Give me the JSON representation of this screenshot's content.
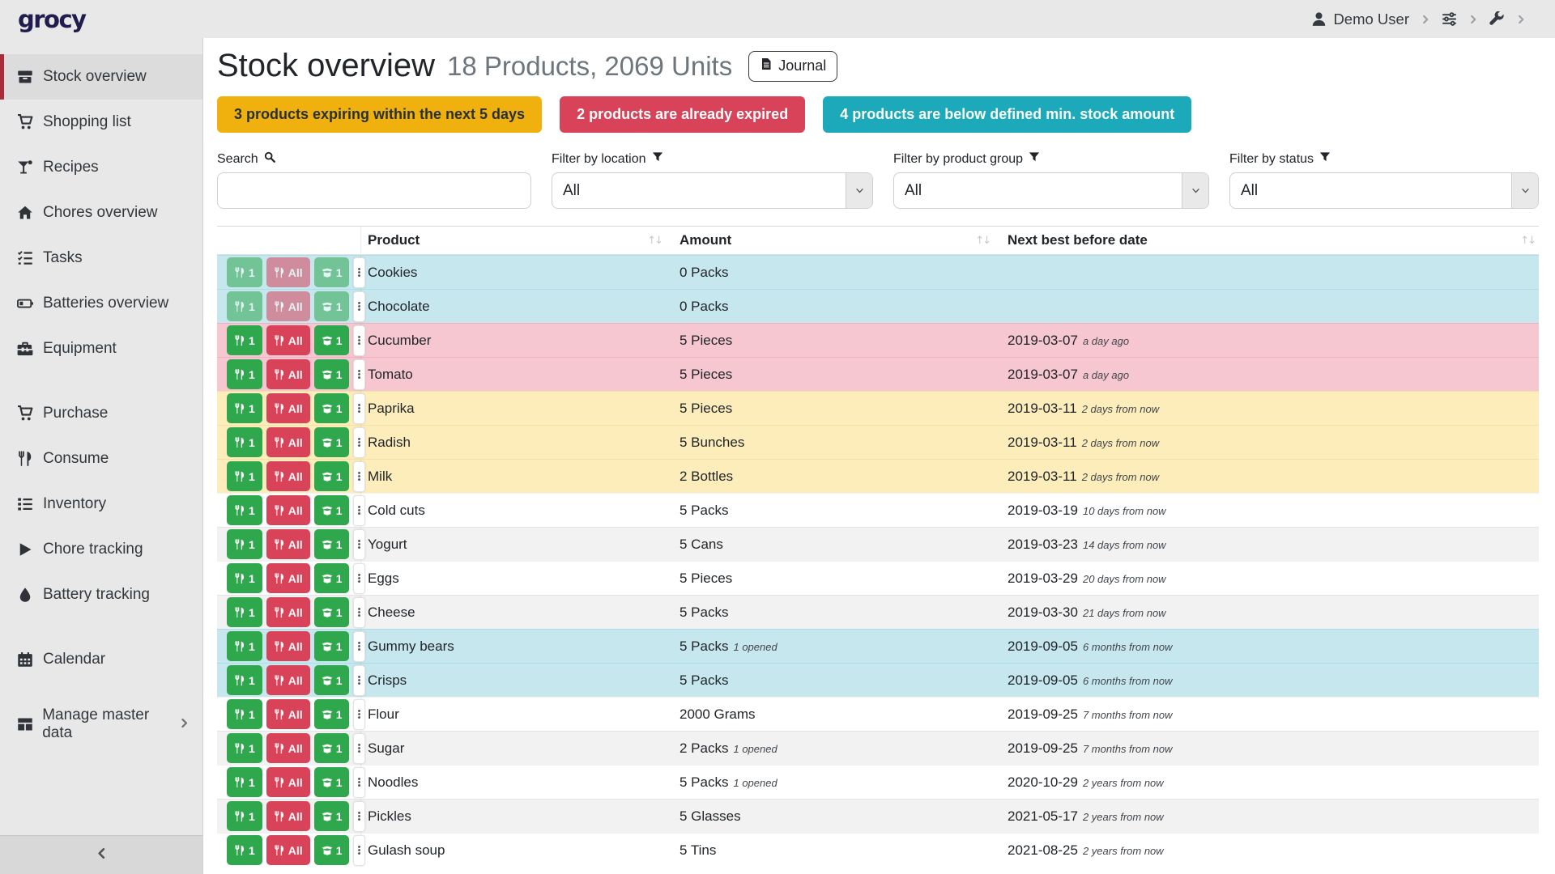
{
  "topbar": {
    "logo": "grocy",
    "user_label": "Demo User"
  },
  "sidebar": {
    "items": [
      {
        "id": "stock-overview",
        "icon": "boxes",
        "label": "Stock overview",
        "active": true
      },
      {
        "id": "shopping-list",
        "icon": "cart",
        "label": "Shopping list"
      },
      {
        "id": "recipes",
        "icon": "cocktail",
        "label": "Recipes"
      },
      {
        "id": "chores-overview",
        "icon": "home",
        "label": "Chores overview"
      },
      {
        "id": "tasks",
        "icon": "tasks",
        "label": "Tasks"
      },
      {
        "id": "batteries-overview",
        "icon": "battery",
        "label": "Batteries overview"
      },
      {
        "id": "equipment",
        "icon": "toolbox",
        "label": "Equipment"
      },
      {
        "id": "purchase",
        "icon": "cart",
        "label": "Purchase",
        "gap": true
      },
      {
        "id": "consume",
        "icon": "utensils",
        "label": "Consume"
      },
      {
        "id": "inventory",
        "icon": "list",
        "label": "Inventory"
      },
      {
        "id": "chore-tracking",
        "icon": "play",
        "label": "Chore tracking"
      },
      {
        "id": "battery-tracking",
        "icon": "droplet",
        "label": "Battery tracking"
      },
      {
        "id": "calendar",
        "icon": "calendar",
        "label": "Calendar",
        "gap": true
      },
      {
        "id": "manage-master-data",
        "icon": "table",
        "label": "Manage master data",
        "gap": true,
        "chevron": true
      }
    ]
  },
  "header": {
    "title": "Stock overview",
    "subtitle": "18 Products, 2069 Units",
    "journal": "Journal"
  },
  "alerts": [
    {
      "text": "3 products expiring within the next 5 days",
      "bg": "#f0b00e",
      "fg": "#273136"
    },
    {
      "text": "2 products are already expired",
      "bg": "#d8435a",
      "fg": "#ffffff"
    },
    {
      "text": "4 products are below defined min. stock amount",
      "bg": "#1ca9ba",
      "fg": "#ffffff"
    }
  ],
  "filters": {
    "search": {
      "label": "Search",
      "value": ""
    },
    "location": {
      "label": "Filter by location",
      "value": "All"
    },
    "group": {
      "label": "Filter by product group",
      "value": "All"
    },
    "status": {
      "label": "Filter by status",
      "value": "All"
    }
  },
  "table": {
    "columns": [
      "Product",
      "Amount",
      "Next best before date"
    ],
    "action_labels": {
      "consume_one": "1",
      "consume_all": "All",
      "open_one": "1"
    },
    "rows": [
      {
        "product": "Cookies",
        "amount": "0 Packs",
        "amount_note": "",
        "date": "",
        "date_note": "",
        "status": "below-min",
        "disabled": true
      },
      {
        "product": "Chocolate",
        "amount": "0 Packs",
        "amount_note": "",
        "date": "",
        "date_note": "",
        "status": "below-min",
        "disabled": true
      },
      {
        "product": "Cucumber",
        "amount": "5 Pieces",
        "amount_note": "",
        "date": "2019-03-07",
        "date_note": "a day ago",
        "status": "expired"
      },
      {
        "product": "Tomato",
        "amount": "5 Pieces",
        "amount_note": "",
        "date": "2019-03-07",
        "date_note": "a day ago",
        "status": "expired"
      },
      {
        "product": "Paprika",
        "amount": "5 Pieces",
        "amount_note": "",
        "date": "2019-03-11",
        "date_note": "2 days from now",
        "status": "expiring"
      },
      {
        "product": "Radish",
        "amount": "5 Bunches",
        "amount_note": "",
        "date": "2019-03-11",
        "date_note": "2 days from now",
        "status": "expiring"
      },
      {
        "product": "Milk",
        "amount": "2 Bottles",
        "amount_note": "",
        "date": "2019-03-11",
        "date_note": "2 days from now",
        "status": "expiring"
      },
      {
        "product": "Cold cuts",
        "amount": "5 Packs",
        "amount_note": "",
        "date": "2019-03-19",
        "date_note": "10 days from now",
        "status": ""
      },
      {
        "product": "Yogurt",
        "amount": "5 Cans",
        "amount_note": "",
        "date": "2019-03-23",
        "date_note": "14 days from now",
        "status": ""
      },
      {
        "product": "Eggs",
        "amount": "5 Pieces",
        "amount_note": "",
        "date": "2019-03-29",
        "date_note": "20 days from now",
        "status": ""
      },
      {
        "product": "Cheese",
        "amount": "5 Packs",
        "amount_note": "",
        "date": "2019-03-30",
        "date_note": "21 days from now",
        "status": ""
      },
      {
        "product": "Gummy bears",
        "amount": "5 Packs",
        "amount_note": "1 opened",
        "date": "2019-09-05",
        "date_note": "6 months from now",
        "status": "below-min"
      },
      {
        "product": "Crisps",
        "amount": "5 Packs",
        "amount_note": "",
        "date": "2019-09-05",
        "date_note": "6 months from now",
        "status": "below-min"
      },
      {
        "product": "Flour",
        "amount": "2000 Grams",
        "amount_note": "",
        "date": "2019-09-25",
        "date_note": "7 months from now",
        "status": ""
      },
      {
        "product": "Sugar",
        "amount": "2 Packs",
        "amount_note": "1 opened",
        "date": "2019-09-25",
        "date_note": "7 months from now",
        "status": ""
      },
      {
        "product": "Noodles",
        "amount": "5 Packs",
        "amount_note": "1 opened",
        "date": "2020-10-29",
        "date_note": "2 years from now",
        "status": ""
      },
      {
        "product": "Pickles",
        "amount": "5 Glasses",
        "amount_note": "",
        "date": "2021-05-17",
        "date_note": "2 years from now",
        "status": ""
      },
      {
        "product": "Gulash soup",
        "amount": "5 Tins",
        "amount_note": "",
        "date": "2021-08-25",
        "date_note": "2 years from now",
        "status": ""
      }
    ]
  }
}
